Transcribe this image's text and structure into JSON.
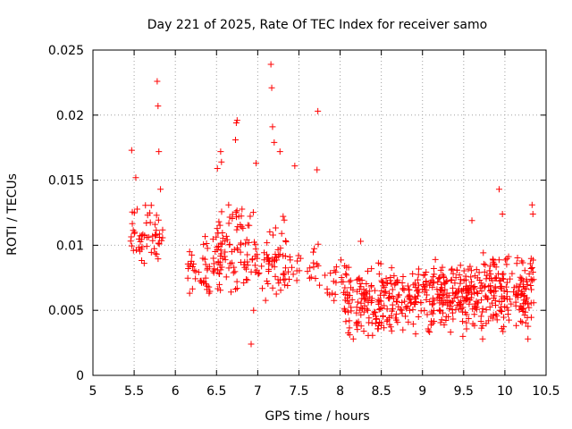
{
  "chart_data": {
    "type": "scatter",
    "title": "Day 221 of 2025, Rate Of TEC Index for receiver samo",
    "xlabel": "GPS time / hours",
    "ylabel": "ROTI / TECUs",
    "xlim": [
      5,
      10.5
    ],
    "ylim": [
      0,
      0.025
    ],
    "grid": true,
    "marker": "+",
    "color": "#ff0000",
    "x_ticks": [
      5,
      5.5,
      6,
      6.5,
      7,
      7.5,
      8,
      8.5,
      9,
      9.5,
      10,
      10.5
    ],
    "x_tick_labels": [
      "5",
      "5.5",
      "6",
      "6.5",
      "7",
      "7.5",
      "8",
      "8.5",
      "9",
      "9.5",
      "10",
      "10.5"
    ],
    "y_ticks": [
      0,
      0.005,
      0.01,
      0.015,
      0.02,
      0.025
    ],
    "y_tick_labels": [
      "0",
      "0.005",
      "0.01",
      "0.015",
      "0.02",
      "0.025"
    ],
    "highlight_points": [
      {
        "x": 5.78,
        "y": 0.0226
      },
      {
        "x": 5.79,
        "y": 0.0207
      },
      {
        "x": 5.8,
        "y": 0.0172
      },
      {
        "x": 5.47,
        "y": 0.0173
      },
      {
        "x": 5.52,
        "y": 0.0152
      },
      {
        "x": 5.82,
        "y": 0.0143
      },
      {
        "x": 6.75,
        "y": 0.0196
      },
      {
        "x": 6.74,
        "y": 0.0194
      },
      {
        "x": 6.73,
        "y": 0.0181
      },
      {
        "x": 7.16,
        "y": 0.0239
      },
      {
        "x": 7.17,
        "y": 0.0221
      },
      {
        "x": 7.18,
        "y": 0.0191
      },
      {
        "x": 7.2,
        "y": 0.0179
      },
      {
        "x": 7.27,
        "y": 0.0172
      },
      {
        "x": 7.73,
        "y": 0.0203
      },
      {
        "x": 7.72,
        "y": 0.0158
      },
      {
        "x": 7.45,
        "y": 0.0161
      },
      {
        "x": 6.92,
        "y": 0.0024
      },
      {
        "x": 9.93,
        "y": 0.0143
      },
      {
        "x": 9.97,
        "y": 0.0124
      },
      {
        "x": 9.6,
        "y": 0.0119
      },
      {
        "x": 10.33,
        "y": 0.0131
      },
      {
        "x": 10.34,
        "y": 0.0124
      },
      {
        "x": 8.25,
        "y": 0.0103
      },
      {
        "x": 8.16,
        "y": 0.0028
      },
      {
        "x": 9.49,
        "y": 0.003
      },
      {
        "x": 9.73,
        "y": 0.0028
      },
      {
        "x": 10.28,
        "y": 0.0028
      },
      {
        "x": 6.98,
        "y": 0.0163
      },
      {
        "x": 6.55,
        "y": 0.0172
      },
      {
        "x": 6.56,
        "y": 0.0164
      },
      {
        "x": 6.51,
        "y": 0.0159
      },
      {
        "x": 6.95,
        "y": 0.005
      }
    ],
    "clusters": [
      {
        "x_range": [
          5.45,
          5.85
        ],
        "y_range": [
          0.008,
          0.014
        ],
        "n": 55
      },
      {
        "x_range": [
          6.15,
          6.55
        ],
        "y_range": [
          0.0055,
          0.011
        ],
        "n": 55
      },
      {
        "x_range": [
          6.5,
          6.8
        ],
        "y_range": [
          0.006,
          0.014
        ],
        "n": 60
      },
      {
        "x_range": [
          6.8,
          7.35
        ],
        "y_range": [
          0.005,
          0.013
        ],
        "n": 85
      },
      {
        "x_range": [
          7.3,
          7.8
        ],
        "y_range": [
          0.006,
          0.011
        ],
        "n": 30
      },
      {
        "x_range": [
          7.8,
          8.05
        ],
        "y_range": [
          0.0055,
          0.009
        ],
        "n": 18
      },
      {
        "x_range": [
          8.05,
          8.5
        ],
        "y_range": [
          0.0025,
          0.009
        ],
        "n": 110
      },
      {
        "x_range": [
          8.5,
          9.0
        ],
        "y_range": [
          0.003,
          0.0085
        ],
        "n": 110
      },
      {
        "x_range": [
          9.0,
          9.5
        ],
        "y_range": [
          0.003,
          0.009
        ],
        "n": 140
      },
      {
        "x_range": [
          9.5,
          10.0
        ],
        "y_range": [
          0.003,
          0.0095
        ],
        "n": 150
      },
      {
        "x_range": [
          10.0,
          10.35
        ],
        "y_range": [
          0.003,
          0.01
        ],
        "n": 90
      }
    ]
  }
}
